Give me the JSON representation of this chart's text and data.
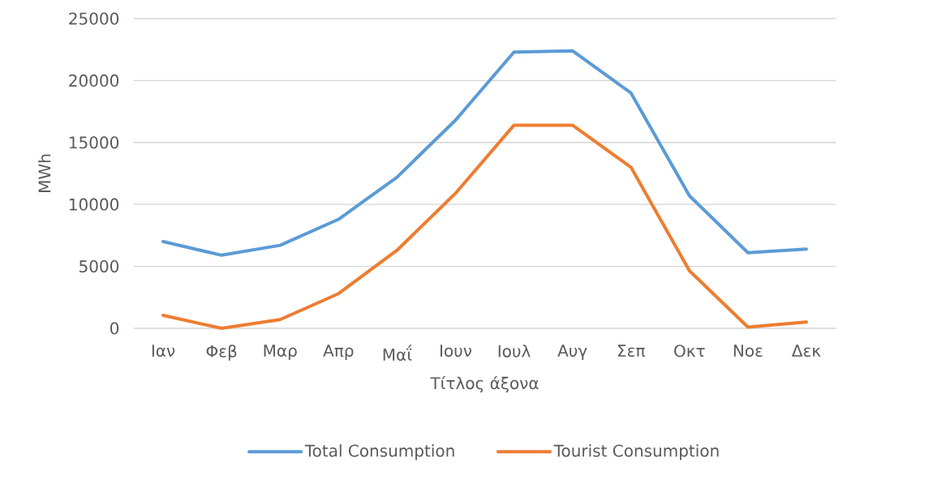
{
  "chart_data": {
    "type": "line",
    "ylabel": "MWh",
    "xlabel": "Τίτλος άξονα",
    "categories": [
      "Ιαν",
      "Φεβ",
      "Μαρ",
      "Απρ",
      "Μαΐ",
      "Ιουν",
      "Ιουλ",
      "Αυγ",
      "Σεπ",
      "Οκτ",
      "Νοε",
      "Δεκ"
    ],
    "series": [
      {
        "name": "Total Consumption",
        "color": "#5b9bd5",
        "values": [
          7000,
          5900,
          6700,
          8800,
          12200,
          16800,
          22300,
          22400,
          19000,
          10700,
          6100,
          6400
        ]
      },
      {
        "name": "Tourist Consumption",
        "color": "#ed7d31",
        "values": [
          1050,
          0,
          700,
          2800,
          6300,
          10900,
          16400,
          16400,
          13000,
          4650,
          100,
          500
        ]
      }
    ],
    "ylim": [
      0,
      25000
    ],
    "yticks": [
      0,
      5000,
      10000,
      15000,
      20000,
      25000
    ],
    "grid": "y",
    "legend": "bottom",
    "marker": "none",
    "line_style": "solid"
  }
}
